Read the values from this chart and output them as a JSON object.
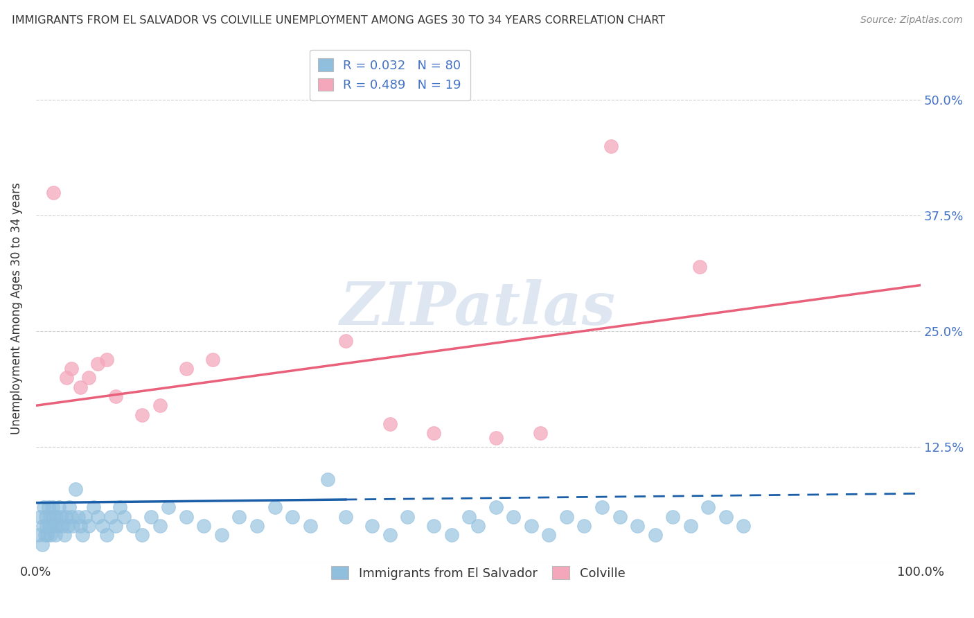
{
  "title": "IMMIGRANTS FROM EL SALVADOR VS COLVILLE UNEMPLOYMENT AMONG AGES 30 TO 34 YEARS CORRELATION CHART",
  "source": "Source: ZipAtlas.com",
  "ylabel": "Unemployment Among Ages 30 to 34 years",
  "xlim": [
    0,
    100
  ],
  "ylim": [
    0,
    55
  ],
  "yticks": [
    0,
    12.5,
    25.0,
    37.5,
    50.0
  ],
  "ytick_labels_right": [
    "",
    "12.5%",
    "25.0%",
    "37.5%",
    "50.0%"
  ],
  "xtick_labels": [
    "0.0%",
    "100.0%"
  ],
  "blue_color": "#90bfde",
  "pink_color": "#f4a7bb",
  "blue_line_color": "#1a5ea8",
  "pink_line_color": "#e8607a",
  "legend_text1": "R = 0.032   N = 80",
  "legend_text2": "R = 0.489   N = 19",
  "watermark_text": "ZIPatlas",
  "background_color": "#ffffff",
  "grid_color": "#d0d0d0",
  "blue_scatter_x": [
    0.3,
    0.5,
    0.7,
    0.8,
    0.9,
    1.0,
    1.1,
    1.2,
    1.3,
    1.4,
    1.5,
    1.6,
    1.7,
    1.8,
    1.9,
    2.0,
    2.1,
    2.2,
    2.3,
    2.5,
    2.6,
    2.8,
    3.0,
    3.2,
    3.4,
    3.6,
    3.8,
    4.0,
    4.2,
    4.5,
    4.8,
    5.0,
    5.3,
    5.6,
    6.0,
    6.5,
    7.0,
    7.5,
    8.0,
    8.5,
    9.0,
    9.5,
    10.0,
    11.0,
    12.0,
    13.0,
    14.0,
    15.0,
    17.0,
    19.0,
    21.0,
    23.0,
    25.0,
    27.0,
    29.0,
    31.0,
    33.0,
    35.0,
    38.0,
    40.0,
    42.0,
    45.0,
    47.0,
    49.0,
    50.0,
    52.0,
    54.0,
    56.0,
    58.0,
    60.0,
    62.0,
    64.0,
    66.0,
    68.0,
    70.0,
    72.0,
    74.0,
    76.0,
    78.0,
    80.0
  ],
  "blue_scatter_y": [
    3,
    5,
    2,
    4,
    6,
    3,
    5,
    4,
    3,
    6,
    4,
    5,
    3,
    4,
    6,
    5,
    4,
    3,
    5,
    4,
    6,
    5,
    4,
    3,
    5,
    4,
    6,
    5,
    4,
    8,
    5,
    4,
    3,
    5,
    4,
    6,
    5,
    4,
    3,
    5,
    4,
    6,
    5,
    4,
    3,
    5,
    4,
    6,
    5,
    4,
    3,
    5,
    4,
    6,
    5,
    4,
    9,
    5,
    4,
    3,
    5,
    4,
    3,
    5,
    4,
    6,
    5,
    4,
    3,
    5,
    4,
    6,
    5,
    4,
    3,
    5,
    4,
    6,
    5,
    4
  ],
  "pink_scatter_x": [
    2.0,
    3.5,
    4.0,
    5.0,
    6.0,
    7.0,
    8.0,
    9.0,
    12.0,
    14.0,
    17.0,
    20.0,
    35.0,
    40.0,
    45.0,
    52.0,
    57.0,
    65.0,
    75.0
  ],
  "pink_scatter_y": [
    40.0,
    20.0,
    21.0,
    19.0,
    20.0,
    21.5,
    22.0,
    18.0,
    16.0,
    17.0,
    21.0,
    22.0,
    24.0,
    15.0,
    14.0,
    13.5,
    14.0,
    45.0,
    32.0
  ],
  "blue_trend_start_x": 0,
  "blue_trend_end_x": 100,
  "blue_trend_start_y": 6.5,
  "blue_trend_end_y": 7.5,
  "blue_solid_end_x": 35,
  "pink_trend_start_x": 0,
  "pink_trend_end_x": 100,
  "pink_trend_start_y": 17.0,
  "pink_trend_end_y": 30.0,
  "title_fontsize": 11.5,
  "axis_label_fontsize": 12,
  "tick_fontsize": 13,
  "legend_fontsize": 13,
  "right_tick_color": "#4472c4",
  "text_color": "#333333"
}
